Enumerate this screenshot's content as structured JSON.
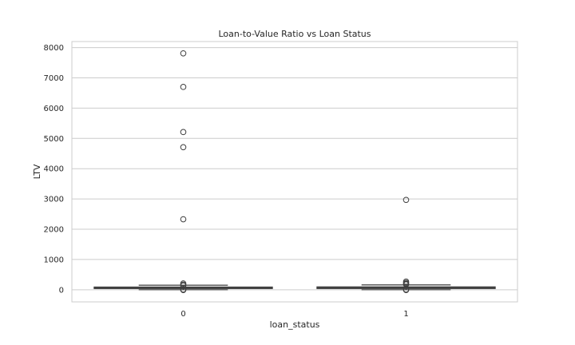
{
  "chart_data": {
    "type": "box",
    "title": "Loan-to-Value Ratio vs Loan Status",
    "xlabel": "loan_status",
    "ylabel": "LTV",
    "categories": [
      "0",
      "1"
    ],
    "ylim": [
      -400,
      8200
    ],
    "yticks": [
      0,
      1000,
      2000,
      3000,
      4000,
      5000,
      6000,
      7000,
      8000
    ],
    "grid": "horizontal",
    "boxes": [
      {
        "category": "0",
        "whisker_low": 0,
        "q1": 40,
        "median": 60,
        "q3": 90,
        "whisker_high": 150,
        "outliers": [
          7810,
          6700,
          5210,
          4710,
          2330,
          210,
          170,
          140,
          10,
          -10
        ]
      },
      {
        "category": "1",
        "whisker_low": 0,
        "q1": 40,
        "median": 62,
        "q3": 95,
        "whisker_high": 160,
        "outliers": [
          2970,
          270,
          230,
          200,
          175,
          10,
          -10
        ]
      }
    ],
    "colors": {
      "box": "#d9d9d9",
      "line": "#3f3f3f",
      "grid": "#cccccc",
      "frame": "#cccccc"
    }
  }
}
